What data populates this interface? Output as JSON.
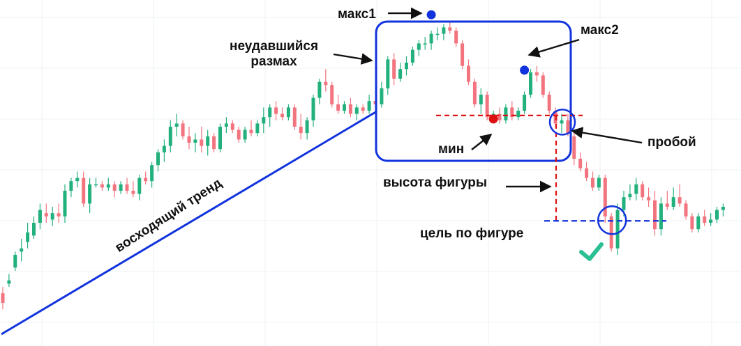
{
  "annotations": {
    "max1": "макс1",
    "max2": "макс2",
    "failed_swing_line1": "неудавшийся",
    "failed_swing_line2": "размах",
    "min": "мин",
    "breakout": "пробой",
    "pattern_height": "высота фигуры",
    "target": "цель по фигуре",
    "uptrend": "восходящий тренд"
  },
  "colors": {
    "bull": "#22b07d",
    "bear": "#f2747f",
    "annotation_blue": "#1133dd",
    "annotation_red": "#dd1111",
    "check": "#2bbf94",
    "grid": "#eef0f3"
  },
  "chart_data": {
    "type": "candlestick",
    "title": "",
    "xlabel": "",
    "ylabel": "",
    "grid": true,
    "ylim": [
      0,
      100
    ],
    "levels": {
      "max1": 93,
      "max2": 77,
      "min": 63.5,
      "breakout": 62.3,
      "target": 30.6
    },
    "candles": [
      {
        "o": 8,
        "h": 10,
        "l": 3,
        "c": 5
      },
      {
        "o": 11,
        "h": 14,
        "l": 10,
        "c": 12
      },
      {
        "o": 16,
        "h": 21,
        "l": 15,
        "c": 20
      },
      {
        "o": 21,
        "h": 25,
        "l": 18,
        "c": 22
      },
      {
        "o": 24,
        "h": 30,
        "l": 22,
        "c": 27
      },
      {
        "o": 26,
        "h": 32,
        "l": 25,
        "c": 30
      },
      {
        "o": 30,
        "h": 36,
        "l": 28,
        "c": 34
      },
      {
        "o": 33,
        "h": 36,
        "l": 30,
        "c": 32
      },
      {
        "o": 31,
        "h": 35,
        "l": 29,
        "c": 33
      },
      {
        "o": 33,
        "h": 36,
        "l": 30,
        "c": 32
      },
      {
        "o": 32,
        "h": 42,
        "l": 30,
        "c": 40
      },
      {
        "o": 40,
        "h": 44,
        "l": 38,
        "c": 43
      },
      {
        "o": 43,
        "h": 46,
        "l": 41,
        "c": 44
      },
      {
        "o": 44,
        "h": 46,
        "l": 35,
        "c": 36
      },
      {
        "o": 36,
        "h": 44,
        "l": 33,
        "c": 42
      },
      {
        "o": 42,
        "h": 44,
        "l": 41,
        "c": 42
      },
      {
        "o": 42,
        "h": 43,
        "l": 40,
        "c": 41
      },
      {
        "o": 41,
        "h": 44,
        "l": 40,
        "c": 42
      },
      {
        "o": 42,
        "h": 43,
        "l": 38,
        "c": 40
      },
      {
        "o": 40,
        "h": 43,
        "l": 39,
        "c": 42
      },
      {
        "o": 42,
        "h": 44,
        "l": 39,
        "c": 40
      },
      {
        "o": 40,
        "h": 43,
        "l": 38,
        "c": 39
      },
      {
        "o": 39,
        "h": 45,
        "l": 37,
        "c": 44
      },
      {
        "o": 44,
        "h": 46,
        "l": 42,
        "c": 43
      },
      {
        "o": 43,
        "h": 49,
        "l": 41,
        "c": 48
      },
      {
        "o": 48,
        "h": 53,
        "l": 46,
        "c": 52
      },
      {
        "o": 52,
        "h": 56,
        "l": 49,
        "c": 54
      },
      {
        "o": 54,
        "h": 62,
        "l": 52,
        "c": 60
      },
      {
        "o": 60,
        "h": 64,
        "l": 57,
        "c": 61
      },
      {
        "o": 61,
        "h": 62,
        "l": 56,
        "c": 57
      },
      {
        "o": 57,
        "h": 60,
        "l": 53,
        "c": 55
      },
      {
        "o": 55,
        "h": 58,
        "l": 52,
        "c": 56
      },
      {
        "o": 56,
        "h": 60,
        "l": 52,
        "c": 54
      },
      {
        "o": 54,
        "h": 59,
        "l": 51,
        "c": 57
      },
      {
        "o": 57,
        "h": 58,
        "l": 52,
        "c": 53
      },
      {
        "o": 53,
        "h": 61,
        "l": 52,
        "c": 60
      },
      {
        "o": 60,
        "h": 63,
        "l": 58,
        "c": 61
      },
      {
        "o": 61,
        "h": 62,
        "l": 58,
        "c": 59
      },
      {
        "o": 59,
        "h": 60,
        "l": 55,
        "c": 56
      },
      {
        "o": 56,
        "h": 60,
        "l": 55,
        "c": 59
      },
      {
        "o": 59,
        "h": 62,
        "l": 57,
        "c": 58
      },
      {
        "o": 58,
        "h": 62,
        "l": 57,
        "c": 61
      },
      {
        "o": 61,
        "h": 66,
        "l": 58,
        "c": 63
      },
      {
        "o": 63,
        "h": 67,
        "l": 60,
        "c": 66
      },
      {
        "o": 66,
        "h": 68,
        "l": 62,
        "c": 64
      },
      {
        "o": 64,
        "h": 66,
        "l": 62,
        "c": 63
      },
      {
        "o": 63,
        "h": 67,
        "l": 62,
        "c": 66
      },
      {
        "o": 66,
        "h": 67,
        "l": 59,
        "c": 60
      },
      {
        "o": 60,
        "h": 64,
        "l": 56,
        "c": 58
      },
      {
        "o": 58,
        "h": 63,
        "l": 56,
        "c": 62
      },
      {
        "o": 62,
        "h": 70,
        "l": 60,
        "c": 69
      },
      {
        "o": 69,
        "h": 75,
        "l": 67,
        "c": 74
      },
      {
        "o": 74,
        "h": 78,
        "l": 71,
        "c": 73
      },
      {
        "o": 73,
        "h": 74,
        "l": 66,
        "c": 67
      },
      {
        "o": 67,
        "h": 70,
        "l": 64,
        "c": 65
      },
      {
        "o": 65,
        "h": 68,
        "l": 64,
        "c": 67
      },
      {
        "o": 67,
        "h": 69,
        "l": 63,
        "c": 64
      },
      {
        "o": 64,
        "h": 67,
        "l": 62,
        "c": 66
      },
      {
        "o": 66,
        "h": 67,
        "l": 64,
        "c": 65
      },
      {
        "o": 65,
        "h": 70,
        "l": 64,
        "c": 68
      },
      {
        "o": 68,
        "h": 69,
        "l": 65,
        "c": 67
      },
      {
        "o": 67,
        "h": 74,
        "l": 66,
        "c": 72
      },
      {
        "o": 72,
        "h": 82,
        "l": 70,
        "c": 81
      },
      {
        "o": 81,
        "h": 83,
        "l": 73,
        "c": 75
      },
      {
        "o": 75,
        "h": 80,
        "l": 74,
        "c": 78
      },
      {
        "o": 78,
        "h": 82,
        "l": 76,
        "c": 80
      },
      {
        "o": 80,
        "h": 85,
        "l": 79,
        "c": 84
      },
      {
        "o": 84,
        "h": 87,
        "l": 82,
        "c": 86
      },
      {
        "o": 86,
        "h": 88,
        "l": 84,
        "c": 86
      },
      {
        "o": 86,
        "h": 90,
        "l": 84,
        "c": 89
      },
      {
        "o": 89,
        "h": 91,
        "l": 87,
        "c": 89
      },
      {
        "o": 89,
        "h": 92,
        "l": 87,
        "c": 91
      },
      {
        "o": 91,
        "h": 93,
        "l": 89,
        "c": 90
      },
      {
        "o": 90,
        "h": 91,
        "l": 85,
        "c": 86
      },
      {
        "o": 86,
        "h": 87,
        "l": 78,
        "c": 79
      },
      {
        "o": 79,
        "h": 81,
        "l": 73,
        "c": 74
      },
      {
        "o": 74,
        "h": 75,
        "l": 66,
        "c": 67
      },
      {
        "o": 67,
        "h": 72,
        "l": 64,
        "c": 70
      },
      {
        "o": 70,
        "h": 71,
        "l": 62,
        "c": 63
      },
      {
        "o": 63,
        "h": 65,
        "l": 61,
        "c": 64
      },
      {
        "o": 64,
        "h": 66,
        "l": 61,
        "c": 62
      },
      {
        "o": 62,
        "h": 67,
        "l": 61,
        "c": 66
      },
      {
        "o": 66,
        "h": 68,
        "l": 62,
        "c": 63
      },
      {
        "o": 63,
        "h": 66,
        "l": 62,
        "c": 65
      },
      {
        "o": 65,
        "h": 71,
        "l": 64,
        "c": 70
      },
      {
        "o": 70,
        "h": 78,
        "l": 69,
        "c": 77
      },
      {
        "o": 77,
        "h": 79,
        "l": 74,
        "c": 76
      },
      {
        "o": 76,
        "h": 77,
        "l": 69,
        "c": 70
      },
      {
        "o": 70,
        "h": 71,
        "l": 64,
        "c": 65
      },
      {
        "o": 65,
        "h": 66,
        "l": 60,
        "c": 61
      },
      {
        "o": 61,
        "h": 64,
        "l": 58,
        "c": 62
      },
      {
        "o": 62,
        "h": 64,
        "l": 57,
        "c": 58
      },
      {
        "o": 57,
        "h": 59,
        "l": 48,
        "c": 50
      },
      {
        "o": 50,
        "h": 52,
        "l": 46,
        "c": 47
      },
      {
        "o": 47,
        "h": 49,
        "l": 43,
        "c": 44
      },
      {
        "o": 44,
        "h": 46,
        "l": 40,
        "c": 41
      },
      {
        "o": 41,
        "h": 45,
        "l": 40,
        "c": 44
      },
      {
        "o": 44,
        "h": 45,
        "l": 30,
        "c": 32
      },
      {
        "o": 32,
        "h": 33,
        "l": 21,
        "c": 22
      },
      {
        "o": 22,
        "h": 36,
        "l": 20,
        "c": 34
      },
      {
        "o": 34,
        "h": 40,
        "l": 32,
        "c": 38
      },
      {
        "o": 38,
        "h": 42,
        "l": 37,
        "c": 39
      },
      {
        "o": 39,
        "h": 44,
        "l": 37,
        "c": 42
      },
      {
        "o": 42,
        "h": 43,
        "l": 37,
        "c": 38
      },
      {
        "o": 38,
        "h": 41,
        "l": 35,
        "c": 37
      },
      {
        "o": 37,
        "h": 40,
        "l": 26,
        "c": 28
      },
      {
        "o": 28,
        "h": 38,
        "l": 26,
        "c": 36
      },
      {
        "o": 36,
        "h": 40,
        "l": 34,
        "c": 35
      },
      {
        "o": 35,
        "h": 41,
        "l": 34,
        "c": 38
      },
      {
        "o": 38,
        "h": 42,
        "l": 35,
        "c": 36
      },
      {
        "o": 36,
        "h": 37,
        "l": 31,
        "c": 32
      },
      {
        "o": 32,
        "h": 33,
        "l": 27,
        "c": 28
      },
      {
        "o": 28,
        "h": 33,
        "l": 27,
        "c": 32
      },
      {
        "o": 32,
        "h": 34,
        "l": 29,
        "c": 30
      },
      {
        "o": 30,
        "h": 33,
        "l": 29,
        "c": 31
      },
      {
        "o": 31,
        "h": 35,
        "l": 30,
        "c": 34
      },
      {
        "o": 34,
        "h": 36,
        "l": 32,
        "c": 35
      }
    ]
  }
}
